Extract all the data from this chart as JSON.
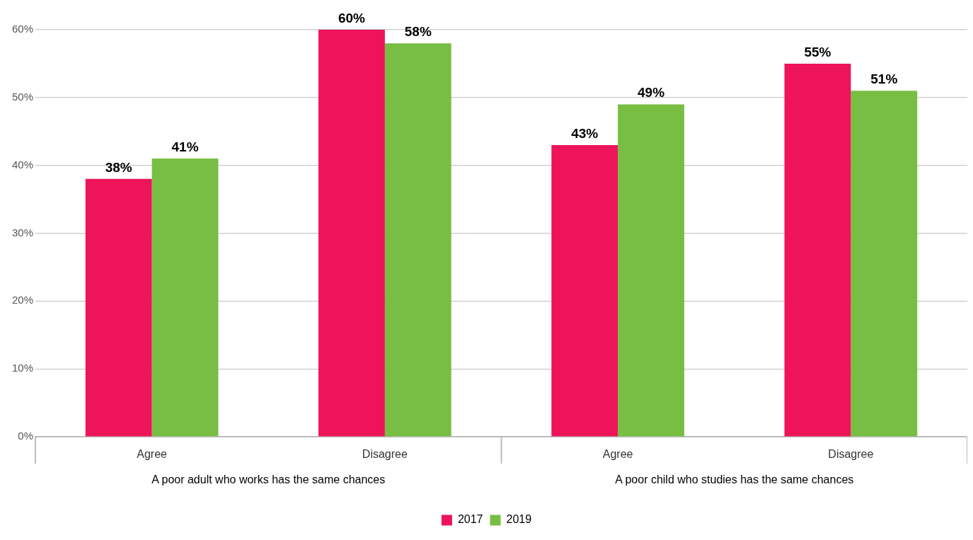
{
  "chart_data": {
    "type": "bar",
    "categories": [
      "Agree",
      "Disagree",
      "Agree",
      "Disagree"
    ],
    "series": [
      {
        "name": "2017",
        "color": "#ed1459",
        "values": [
          38,
          60,
          43,
          55
        ],
        "value_labels": [
          "38%",
          "60%",
          "43%",
          "55%"
        ]
      },
      {
        "name": "2019",
        "color": "#77be43",
        "values": [
          41,
          58,
          49,
          51
        ],
        "value_labels": [
          "41%",
          "58%",
          "49%",
          "51%"
        ]
      }
    ],
    "ylim": [
      0,
      60
    ],
    "yticks": [
      {
        "value": 0,
        "label": "0%"
      },
      {
        "value": 10,
        "label": "10%"
      },
      {
        "value": 20,
        "label": "20%"
      },
      {
        "value": 30,
        "label": "30%"
      },
      {
        "value": 40,
        "label": "40%"
      },
      {
        "value": 50,
        "label": "50%"
      },
      {
        "value": 60,
        "label": "60%"
      }
    ],
    "grid": "y",
    "legend": "bottom",
    "annotations": [
      "A poor adult who works has the same chances",
      "A poor child who studies has the same chances"
    ]
  }
}
